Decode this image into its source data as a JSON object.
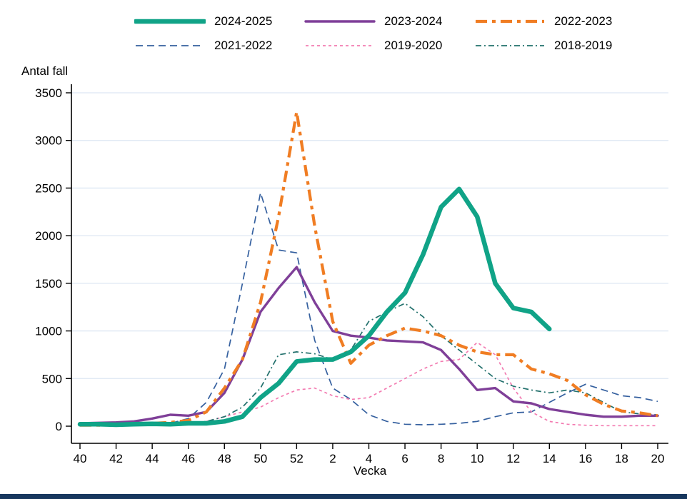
{
  "page": {
    "background": "#ffffff",
    "bottom_bar_color": "#17375e"
  },
  "chart_data": {
    "type": "line",
    "title": "",
    "ylabel": "Antal fall",
    "xlabel": "Vecka",
    "ylim": [
      0,
      3500
    ],
    "yticks": [
      0,
      500,
      1000,
      1500,
      2000,
      2500,
      3000,
      3500
    ],
    "grid": true,
    "legend_position": "top",
    "x_tick_every": 2,
    "categories": [
      "40",
      "41",
      "42",
      "43",
      "44",
      "45",
      "46",
      "47",
      "48",
      "49",
      "50",
      "51",
      "52",
      "1",
      "2",
      "3",
      "4",
      "5",
      "6",
      "7",
      "8",
      "9",
      "10",
      "11",
      "12",
      "13",
      "14",
      "15",
      "16",
      "17",
      "18",
      "19",
      "20"
    ],
    "axis_color": "#000000",
    "gridline_color": "#dde7f3",
    "series": [
      {
        "name": "2024-2025",
        "color": "#10a387",
        "pattern": "solid",
        "weight": "heavy",
        "values": [
          20,
          20,
          15,
          20,
          25,
          20,
          30,
          30,
          50,
          100,
          300,
          450,
          680,
          700,
          700,
          780,
          950,
          1200,
          1400,
          1800,
          2300,
          2490,
          2200,
          1500,
          1240,
          1200,
          1020,
          null,
          null,
          null,
          null,
          null,
          null
        ]
      },
      {
        "name": "2023-2024",
        "color": "#7f3f98",
        "pattern": "solid",
        "weight": "medium",
        "values": [
          30,
          35,
          40,
          50,
          80,
          120,
          110,
          150,
          350,
          700,
          1200,
          1450,
          1670,
          1300,
          1000,
          950,
          930,
          900,
          890,
          880,
          800,
          600,
          380,
          400,
          260,
          240,
          180,
          150,
          120,
          100,
          100,
          110,
          110
        ]
      },
      {
        "name": "2022-2023",
        "color": "#f07d23",
        "pattern": "long-dash-dot",
        "weight": "bold",
        "values": [
          10,
          10,
          15,
          20,
          30,
          40,
          60,
          150,
          400,
          700,
          1300,
          2200,
          3300,
          2100,
          1100,
          660,
          850,
          950,
          1030,
          1000,
          950,
          850,
          780,
          750,
          750,
          600,
          550,
          480,
          330,
          230,
          160,
          140,
          110
        ]
      },
      {
        "name": "2021-2022",
        "color": "#35609f",
        "pattern": "dashed",
        "weight": "thin",
        "values": [
          10,
          10,
          10,
          15,
          20,
          30,
          80,
          250,
          600,
          1500,
          2450,
          1850,
          1820,
          900,
          400,
          280,
          120,
          50,
          20,
          15,
          20,
          30,
          50,
          100,
          140,
          150,
          250,
          350,
          440,
          380,
          320,
          300,
          260
        ]
      },
      {
        "name": "2019-2020",
        "color": "#f37bb1",
        "pattern": "short-dashed",
        "weight": "thin",
        "values": [
          5,
          5,
          10,
          10,
          15,
          20,
          30,
          50,
          100,
          150,
          200,
          300,
          380,
          400,
          320,
          280,
          300,
          400,
          500,
          600,
          680,
          700,
          880,
          750,
          400,
          150,
          50,
          20,
          10,
          5,
          5,
          5,
          5
        ]
      },
      {
        "name": "2018-2019",
        "color": "#22706c",
        "pattern": "dash-dot",
        "weight": "thin",
        "values": [
          10,
          10,
          10,
          15,
          20,
          25,
          30,
          50,
          100,
          200,
          400,
          750,
          780,
          760,
          700,
          800,
          1100,
          1200,
          1290,
          1150,
          950,
          800,
          650,
          500,
          420,
          380,
          350,
          380,
          350,
          250,
          150,
          130,
          120
        ]
      }
    ]
  }
}
